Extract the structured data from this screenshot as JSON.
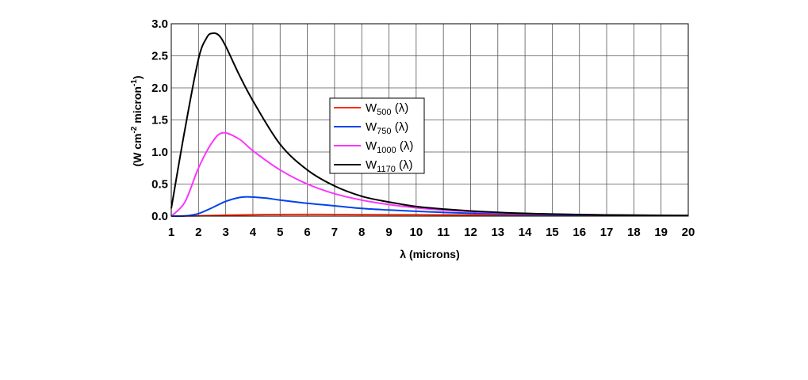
{
  "chart_data": {
    "type": "line",
    "title": "",
    "xlabel": "λ (microns)",
    "ylabel_parts": [
      "(W cm",
      "-2",
      " micron",
      "-1",
      ")"
    ],
    "xlim": [
      1,
      20
    ],
    "ylim": [
      0,
      3.0
    ],
    "xticks": [
      1,
      2,
      3,
      4,
      5,
      6,
      7,
      8,
      9,
      10,
      11,
      12,
      13,
      14,
      15,
      16,
      17,
      18,
      19,
      20
    ],
    "yticks": [
      "0.0",
      "0.5",
      "1.0",
      "1.5",
      "2.0",
      "2.5",
      "3.0"
    ],
    "grid": true,
    "legend_position": "center",
    "series": [
      {
        "name": "W",
        "sub": "500",
        "suffix": " (λ)",
        "color": "#ff2a00",
        "x": [
          1,
          2,
          3,
          4,
          5,
          6,
          7,
          8,
          10,
          12,
          15,
          20
        ],
        "y": [
          0.0,
          0.005,
          0.015,
          0.022,
          0.025,
          0.026,
          0.025,
          0.024,
          0.021,
          0.018,
          0.014,
          0.01
        ]
      },
      {
        "name": "W",
        "sub": "750",
        "suffix": " (λ)",
        "color": "#0044ee",
        "x": [
          1,
          1.5,
          2,
          2.5,
          3,
          3.5,
          3.86,
          4.5,
          5,
          6,
          7,
          8,
          9,
          10,
          11,
          12,
          13,
          14,
          15,
          16,
          17,
          18,
          19,
          20
        ],
        "y": [
          0.0,
          0.003,
          0.04,
          0.13,
          0.23,
          0.29,
          0.3,
          0.28,
          0.25,
          0.2,
          0.16,
          0.12,
          0.095,
          0.075,
          0.058,
          0.045,
          0.035,
          0.028,
          0.022,
          0.017,
          0.014,
          0.011,
          0.009,
          0.008
        ]
      },
      {
        "name": "W",
        "sub": "1000",
        "suffix": " (λ)",
        "color": "#ff33ff",
        "x": [
          1,
          1.5,
          2,
          2.5,
          2.9,
          3.5,
          4,
          5,
          6,
          7,
          8,
          9,
          10,
          11,
          12,
          13,
          14,
          15,
          16,
          17,
          18,
          19,
          20
        ],
        "y": [
          0.0,
          0.22,
          0.75,
          1.15,
          1.3,
          1.2,
          1.02,
          0.72,
          0.5,
          0.35,
          0.25,
          0.18,
          0.13,
          0.095,
          0.07,
          0.052,
          0.04,
          0.03,
          0.023,
          0.018,
          0.014,
          0.011,
          0.009
        ]
      },
      {
        "name": "W",
        "sub": "1170",
        "suffix": " (λ)",
        "color": "#000000",
        "x": [
          1,
          1.5,
          2,
          2.3,
          2.5,
          2.75,
          3,
          3.5,
          4,
          5,
          6,
          7,
          8,
          9,
          10,
          11,
          12,
          13,
          14,
          15,
          16,
          17,
          18,
          19,
          20
        ],
        "y": [
          0.12,
          1.35,
          2.45,
          2.78,
          2.85,
          2.82,
          2.65,
          2.2,
          1.8,
          1.12,
          0.72,
          0.47,
          0.31,
          0.22,
          0.15,
          0.11,
          0.08,
          0.058,
          0.043,
          0.032,
          0.025,
          0.019,
          0.015,
          0.012,
          0.01
        ]
      }
    ]
  }
}
